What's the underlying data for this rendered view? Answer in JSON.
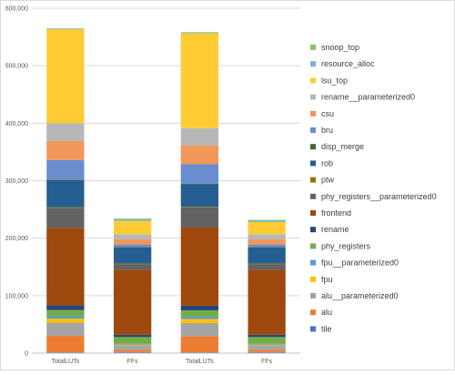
{
  "chart_data": {
    "type": "bar",
    "stacked": true,
    "categories": [
      "TotalLUTs",
      "FFs",
      "TotalLUTs",
      "FFs"
    ],
    "ylim": [
      0,
      600000
    ],
    "yticks": [
      0,
      100000,
      200000,
      300000,
      400000,
      500000,
      600000
    ],
    "ytick_labels": [
      "0",
      "100,000",
      "200,000",
      "300,000",
      "400,000",
      "500,000",
      "600,000"
    ],
    "grid": true,
    "legend_position": "right",
    "series": [
      {
        "name": "tile",
        "color": "#4472c4",
        "values": [
          1500,
          2000,
          1500,
          2000
        ]
      },
      {
        "name": "alu",
        "color": "#ed7d31",
        "values": [
          28500,
          4000,
          28000,
          4000
        ]
      },
      {
        "name": "alu__parameterized0",
        "color": "#a5a5a5",
        "values": [
          23000,
          8000,
          23000,
          8000
        ]
      },
      {
        "name": "fpu",
        "color": "#ffc000",
        "values": [
          7000,
          1000,
          7000,
          1000
        ]
      },
      {
        "name": "fpu__parameterized0",
        "color": "#5b9bd5",
        "values": [
          4000,
          1000,
          4000,
          1000
        ]
      },
      {
        "name": "phy_registers",
        "color": "#70ad47",
        "values": [
          11000,
          12000,
          11000,
          12000
        ]
      },
      {
        "name": "rename",
        "color": "#264478",
        "values": [
          8000,
          4000,
          8000,
          4000
        ]
      },
      {
        "name": "frontend",
        "color": "#9e480e",
        "values": [
          135000,
          113000,
          136000,
          113000
        ]
      },
      {
        "name": "phy_registers__parameterized0",
        "color": "#636363",
        "values": [
          35000,
          10000,
          35000,
          10000
        ]
      },
      {
        "name": "ptw",
        "color": "#997300",
        "values": [
          1000,
          1000,
          1000,
          1000
        ]
      },
      {
        "name": "rob",
        "color": "#255e91",
        "values": [
          47000,
          28000,
          39000,
          28000
        ]
      },
      {
        "name": "disp_merge",
        "color": "#43682b",
        "values": [
          1000,
          1000,
          1000,
          1000
        ]
      },
      {
        "name": "bru",
        "color": "#698ed0",
        "values": [
          34000,
          4000,
          34000,
          4000
        ]
      },
      {
        "name": "csu",
        "color": "#f1975a",
        "values": [
          33000,
          9000,
          33000,
          9000
        ]
      },
      {
        "name": "rename__parameterized0",
        "color": "#b7b7b7",
        "values": [
          31000,
          9000,
          30000,
          9000
        ]
      },
      {
        "name": "lsu_top",
        "color": "#ffcd33",
        "values": [
          163000,
          23000,
          165000,
          21000
        ]
      },
      {
        "name": "resource_alloc",
        "color": "#7cafdd",
        "values": [
          1000,
          2000,
          1000,
          2000
        ]
      },
      {
        "name": "snoop_top",
        "color": "#8cc168",
        "values": [
          1000,
          2000,
          1000,
          2000
        ]
      }
    ]
  }
}
